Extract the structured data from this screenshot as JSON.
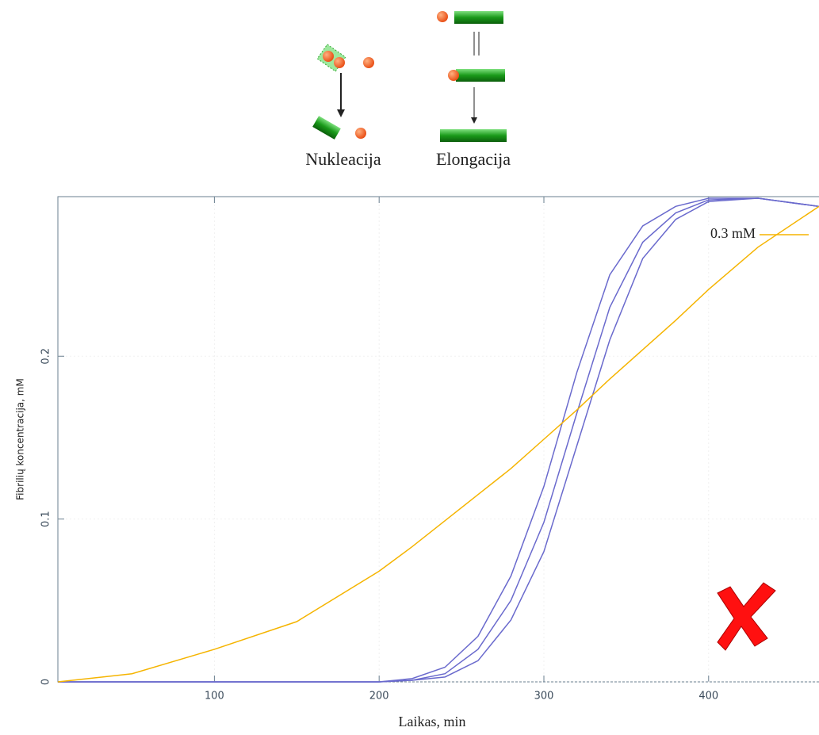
{
  "diagram": {
    "labels": [
      "Nukleacija",
      "Elongacija"
    ]
  },
  "chart_data": {
    "type": "line",
    "x_label": "Laikas, min",
    "y_label": "Fibrilių koncentracija, mM",
    "x": [
      5,
      50,
      100,
      150,
      200,
      220,
      240,
      260,
      280,
      300,
      320,
      340,
      360,
      380,
      400,
      430,
      467
    ],
    "series": [
      {
        "color": "#6a6acd",
        "values": [
          0,
          0,
          0,
          0,
          0,
          0.002,
          0.009,
          0.028,
          0.065,
          0.12,
          0.19,
          0.25,
          0.28,
          0.292,
          0.297,
          0.297,
          0.292
        ]
      },
      {
        "color": "#6a6acd",
        "values": [
          0,
          0,
          0,
          0,
          0,
          0.001,
          0.005,
          0.02,
          0.05,
          0.098,
          0.165,
          0.23,
          0.27,
          0.288,
          0.296,
          0.297,
          0.292
        ]
      },
      {
        "color": "#6a6acd",
        "values": [
          0,
          0,
          0,
          0,
          0,
          0.001,
          0.003,
          0.013,
          0.038,
          0.08,
          0.145,
          0.21,
          0.26,
          0.284,
          0.295,
          0.297,
          0.292
        ]
      },
      {
        "name": "0.3 mM",
        "color": "#f5b400",
        "values": [
          0,
          0.005,
          0.02,
          0.037,
          0.068,
          0.083,
          0.099,
          0.115,
          0.131,
          0.149,
          0.167,
          0.186,
          0.204,
          0.222,
          0.241,
          0.267,
          0.292
        ]
      }
    ],
    "xlim": [
      5,
      467
    ],
    "ylim": [
      0,
      0.298
    ],
    "xticks": [
      100,
      200,
      300,
      400
    ],
    "yticks": [
      0,
      0.1,
      0.2
    ],
    "grid": true
  }
}
